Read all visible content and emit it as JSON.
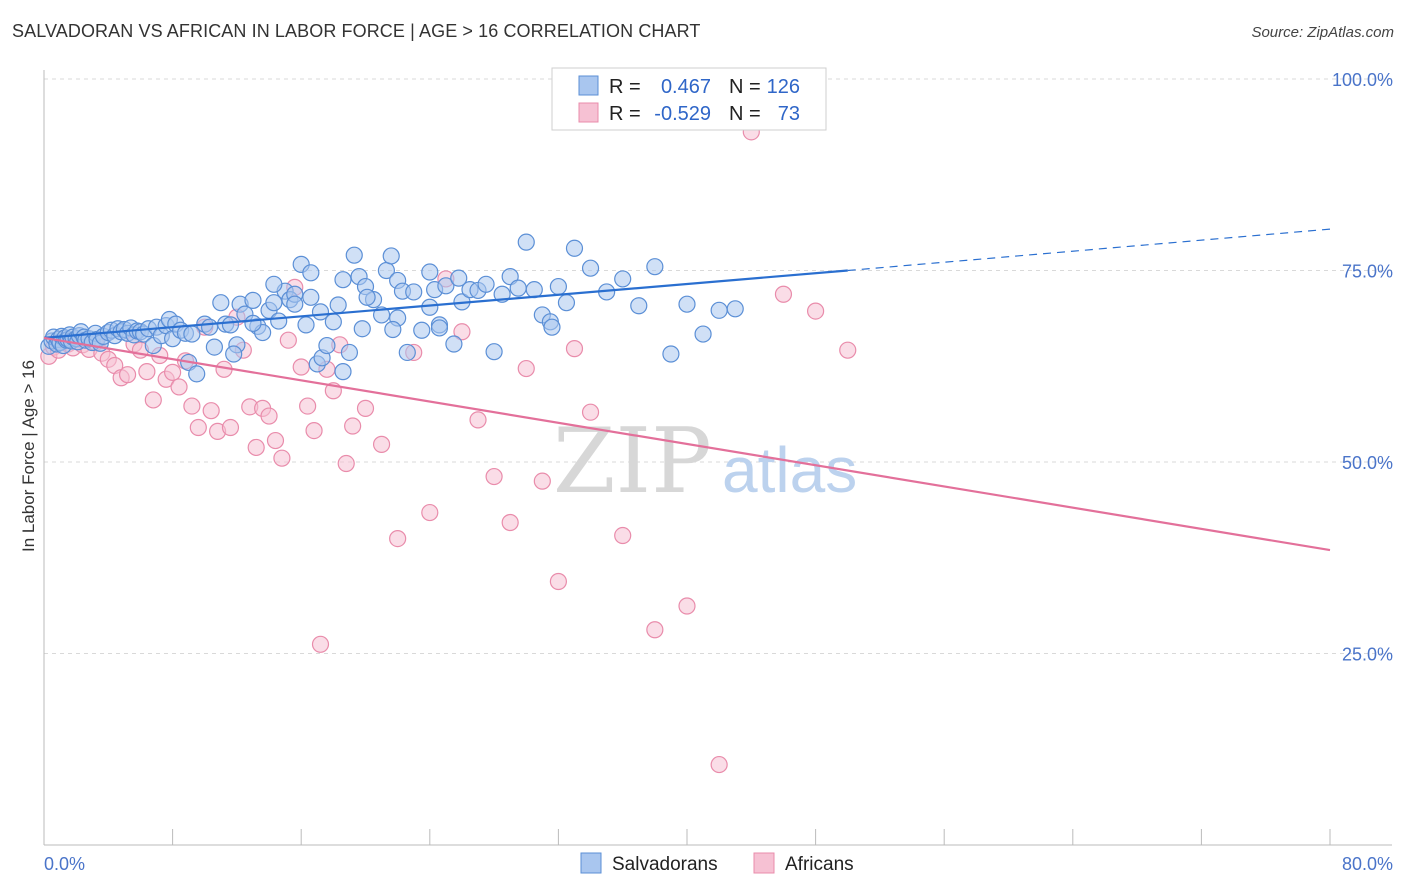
{
  "title": "SALVADORAN VS AFRICAN IN LABOR FORCE | AGE > 16 CORRELATION CHART",
  "source": "Source: ZipAtlas.com",
  "watermark": {
    "zip": "ZIP",
    "atlas": "atlas"
  },
  "colors": {
    "blue_fill": "#a9c6ef",
    "blue_stroke": "#5b8fd6",
    "blue_line": "#2a6fd0",
    "pink_fill": "#f6c1d3",
    "pink_stroke": "#e98cab",
    "pink_line": "#e3709a",
    "grid": "#d9d9d9",
    "tick_label": "#4a74c9"
  },
  "legend": {
    "rows": [
      {
        "r_label": "R =",
        "r_value": "0.467",
        "n_label": "N =",
        "n_value": "126"
      },
      {
        "r_label": "R =",
        "r_value": "-0.529",
        "n_label": "N =",
        "n_value": "73"
      }
    ]
  },
  "bottom_legend": {
    "items": [
      "Salvadorans",
      "Africans"
    ]
  },
  "chart_data": {
    "type": "scatter",
    "title": "SALVADORAN VS AFRICAN IN LABOR FORCE | AGE > 16 CORRELATION CHART",
    "xlabel": "",
    "ylabel": "In Labor Force | Age > 16",
    "xlim": [
      0,
      80
    ],
    "ylim": [
      0,
      105
    ],
    "x_tick_labels": [
      "0.0%",
      "80.0%"
    ],
    "y_ticks": [
      25,
      50,
      75,
      100
    ],
    "y_tick_labels": [
      "25.0%",
      "50.0%",
      "75.0%",
      "100.0%"
    ],
    "grid": true,
    "series": [
      {
        "name": "Salvadorans",
        "r": 0.467,
        "n": 126,
        "trend": {
          "x0": 0,
          "y0": 66.2,
          "x1": 50,
          "y1": 75.0,
          "dashed_to_x": 80,
          "dashed_to_y": 80.4
        },
        "points": [
          [
            0.3,
            65.1
          ],
          [
            0.5,
            65.8
          ],
          [
            0.6,
            66.3
          ],
          [
            0.8,
            65.4
          ],
          [
            0.9,
            66.0
          ],
          [
            1.0,
            65.6
          ],
          [
            1.1,
            66.4
          ],
          [
            1.2,
            65.2
          ],
          [
            1.3,
            66.2
          ],
          [
            1.4,
            65.9
          ],
          [
            1.5,
            66.0
          ],
          [
            1.6,
            66.6
          ],
          [
            1.7,
            65.8
          ],
          [
            1.8,
            66.3
          ],
          [
            2.0,
            66.1
          ],
          [
            2.1,
            65.7
          ],
          [
            2.2,
            66.5
          ],
          [
            2.3,
            67.0
          ],
          [
            2.5,
            66.3
          ],
          [
            2.6,
            65.9
          ],
          [
            2.8,
            66.1
          ],
          [
            3.0,
            65.6
          ],
          [
            3.2,
            66.8
          ],
          [
            3.3,
            66.0
          ],
          [
            3.5,
            65.5
          ],
          [
            3.7,
            66.4
          ],
          [
            4.0,
            66.9
          ],
          [
            4.2,
            67.2
          ],
          [
            4.4,
            66.5
          ],
          [
            4.6,
            67.4
          ],
          [
            4.8,
            67.0
          ],
          [
            5.0,
            67.3
          ],
          [
            5.2,
            66.8
          ],
          [
            5.4,
            67.5
          ],
          [
            5.6,
            66.6
          ],
          [
            5.8,
            67.1
          ],
          [
            6.0,
            67.0
          ],
          [
            6.2,
            66.7
          ],
          [
            6.5,
            67.4
          ],
          [
            6.8,
            65.2
          ],
          [
            7.0,
            67.6
          ],
          [
            7.3,
            66.5
          ],
          [
            7.6,
            67.8
          ],
          [
            7.8,
            68.6
          ],
          [
            8.0,
            66.1
          ],
          [
            8.2,
            68.0
          ],
          [
            8.5,
            67.2
          ],
          [
            8.8,
            66.8
          ],
          [
            9.0,
            63.0
          ],
          [
            9.2,
            66.7
          ],
          [
            9.5,
            61.5
          ],
          [
            10.0,
            68.0
          ],
          [
            10.3,
            67.6
          ],
          [
            10.6,
            65.0
          ],
          [
            11.0,
            70.8
          ],
          [
            11.3,
            68.0
          ],
          [
            11.6,
            67.9
          ],
          [
            12.0,
            65.3
          ],
          [
            12.2,
            70.6
          ],
          [
            12.5,
            69.3
          ],
          [
            13.0,
            71.1
          ],
          [
            13.3,
            67.7
          ],
          [
            13.6,
            66.9
          ],
          [
            14.0,
            69.8
          ],
          [
            14.3,
            70.8
          ],
          [
            14.6,
            68.4
          ],
          [
            15.0,
            72.3
          ],
          [
            15.3,
            71.2
          ],
          [
            15.6,
            71.9
          ],
          [
            16.0,
            75.8
          ],
          [
            16.3,
            67.9
          ],
          [
            16.6,
            74.7
          ],
          [
            17.0,
            62.8
          ],
          [
            17.3,
            63.6
          ],
          [
            17.6,
            65.2
          ],
          [
            18.0,
            68.3
          ],
          [
            18.3,
            70.5
          ],
          [
            18.6,
            61.8
          ],
          [
            19.0,
            64.3
          ],
          [
            19.3,
            77.0
          ],
          [
            19.6,
            74.2
          ],
          [
            20.0,
            72.9
          ],
          [
            20.5,
            71.2
          ],
          [
            21.0,
            69.2
          ],
          [
            21.3,
            75.0
          ],
          [
            21.6,
            76.9
          ],
          [
            22.0,
            73.7
          ],
          [
            22.3,
            72.3
          ],
          [
            22.6,
            64.3
          ],
          [
            23.0,
            72.2
          ],
          [
            23.5,
            67.2
          ],
          [
            24.0,
            74.8
          ],
          [
            24.3,
            72.5
          ],
          [
            24.6,
            67.9
          ],
          [
            25.0,
            73.0
          ],
          [
            25.5,
            65.4
          ],
          [
            26.0,
            70.9
          ],
          [
            26.5,
            72.5
          ],
          [
            27.0,
            72.4
          ],
          [
            27.5,
            73.2
          ],
          [
            28.0,
            64.4
          ],
          [
            28.5,
            71.9
          ],
          [
            29.0,
            74.2
          ],
          [
            29.5,
            72.7
          ],
          [
            30.0,
            78.7
          ],
          [
            30.5,
            72.5
          ],
          [
            31.0,
            69.2
          ],
          [
            31.5,
            68.3
          ],
          [
            32.0,
            72.9
          ],
          [
            32.5,
            70.8
          ],
          [
            33.0,
            77.9
          ],
          [
            34.0,
            75.3
          ],
          [
            35.0,
            72.2
          ],
          [
            36.0,
            73.9
          ],
          [
            37.0,
            70.4
          ],
          [
            38.0,
            75.5
          ],
          [
            39.0,
            64.1
          ],
          [
            40.0,
            70.6
          ],
          [
            41.0,
            66.7
          ],
          [
            42.0,
            69.8
          ],
          [
            43.0,
            70.0
          ],
          [
            14.3,
            73.2
          ],
          [
            15.6,
            70.6
          ],
          [
            13.0,
            68.1
          ],
          [
            18.6,
            73.8
          ],
          [
            22.0,
            68.8
          ],
          [
            24.6,
            67.5
          ],
          [
            16.6,
            71.5
          ],
          [
            17.2,
            69.6
          ],
          [
            25.8,
            74.0
          ],
          [
            11.8,
            64.1
          ],
          [
            19.8,
            67.4
          ],
          [
            21.7,
            67.3
          ],
          [
            24.0,
            70.2
          ],
          [
            31.6,
            67.6
          ],
          [
            20.1,
            71.5
          ]
        ]
      },
      {
        "name": "Africans",
        "r": -0.529,
        "n": 73,
        "trend": {
          "x0": 0,
          "y0": 66.2,
          "x1": 80,
          "y1": 38.5
        },
        "points": [
          [
            0.3,
            63.8
          ],
          [
            0.6,
            65.0
          ],
          [
            0.9,
            64.6
          ],
          [
            1.2,
            65.8
          ],
          [
            1.5,
            65.4
          ],
          [
            1.8,
            64.9
          ],
          [
            2.1,
            66.0
          ],
          [
            2.4,
            65.3
          ],
          [
            2.8,
            64.7
          ],
          [
            3.2,
            65.6
          ],
          [
            3.6,
            64.2
          ],
          [
            4.0,
            63.4
          ],
          [
            4.4,
            62.6
          ],
          [
            4.8,
            61.0
          ],
          [
            5.2,
            61.4
          ],
          [
            5.6,
            65.4
          ],
          [
            6.0,
            64.6
          ],
          [
            6.4,
            61.8
          ],
          [
            6.8,
            58.1
          ],
          [
            7.2,
            63.9
          ],
          [
            7.6,
            60.8
          ],
          [
            8.0,
            61.7
          ],
          [
            8.4,
            59.8
          ],
          [
            8.8,
            63.2
          ],
          [
            9.2,
            57.3
          ],
          [
            9.6,
            54.5
          ],
          [
            10.0,
            67.6
          ],
          [
            10.4,
            56.7
          ],
          [
            10.8,
            54.0
          ],
          [
            11.2,
            62.1
          ],
          [
            11.6,
            54.5
          ],
          [
            12.0,
            68.9
          ],
          [
            12.4,
            64.6
          ],
          [
            12.8,
            57.2
          ],
          [
            13.2,
            51.9
          ],
          [
            13.6,
            57.0
          ],
          [
            14.0,
            56.0
          ],
          [
            14.4,
            52.8
          ],
          [
            14.8,
            50.5
          ],
          [
            15.2,
            65.9
          ],
          [
            15.6,
            72.8
          ],
          [
            16.0,
            62.4
          ],
          [
            16.4,
            57.3
          ],
          [
            16.8,
            54.1
          ],
          [
            17.2,
            26.2
          ],
          [
            17.6,
            62.1
          ],
          [
            18.0,
            59.3
          ],
          [
            18.4,
            65.3
          ],
          [
            18.8,
            49.8
          ],
          [
            19.2,
            54.7
          ],
          [
            20.0,
            57.0
          ],
          [
            21.0,
            52.3
          ],
          [
            22.0,
            40.0
          ],
          [
            23.0,
            64.3
          ],
          [
            24.0,
            43.4
          ],
          [
            25.0,
            73.9
          ],
          [
            26.0,
            67.0
          ],
          [
            27.0,
            55.5
          ],
          [
            28.0,
            48.1
          ],
          [
            29.0,
            42.1
          ],
          [
            30.0,
            62.2
          ],
          [
            31.0,
            47.5
          ],
          [
            32.0,
            34.4
          ],
          [
            33.0,
            64.8
          ],
          [
            34.0,
            56.5
          ],
          [
            36.0,
            40.4
          ],
          [
            38.0,
            28.1
          ],
          [
            40.0,
            31.2
          ],
          [
            42.0,
            10.5
          ],
          [
            44.0,
            93.1
          ],
          [
            46.0,
            71.9
          ],
          [
            48.0,
            69.7
          ],
          [
            50.0,
            64.6
          ]
        ]
      }
    ]
  }
}
